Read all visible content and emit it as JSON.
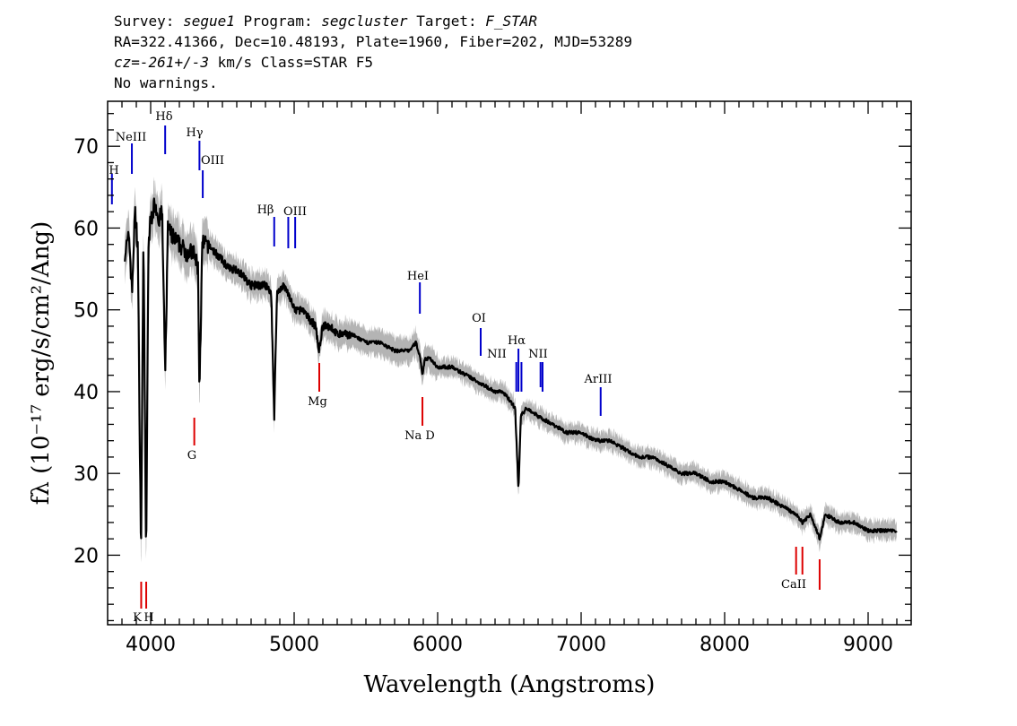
{
  "header": {
    "survey_label": "Survey:",
    "survey": "segue1",
    "program_label": "Program:",
    "program": "segcluster",
    "target_label": "Target:",
    "target": "F_STAR",
    "line2": "RA=322.41366, Dec=10.48193, Plate=1960, Fiber=202, MJD=53289",
    "line3_pre": "cz=",
    "line3_val": "-261+/-3",
    "line3_post": " km/s Class=STAR F5",
    "line4": "No warnings."
  },
  "chart_data": {
    "type": "line",
    "xlabel": "Wavelength (Angstroms)",
    "ylabel": "fλ (10⁻¹⁷ erg/s/cm²/Ang)",
    "xlim": [
      3700,
      9300
    ],
    "ylim": [
      11.5,
      75.5
    ],
    "x_ticks": [
      4000,
      5000,
      6000,
      7000,
      8000,
      9000
    ],
    "y_ticks": [
      20,
      30,
      40,
      50,
      60,
      70
    ],
    "grid": false,
    "colors": {
      "flux": "#000000",
      "error": "#b4b4b4",
      "emission": "#0000cc",
      "absorption": "#dd0000"
    },
    "series": [
      {
        "x": [
          3820,
          3850,
          3870,
          3890,
          3910,
          3933,
          3950,
          3968,
          3985,
          4000,
          4030,
          4060,
          4080,
          4101,
          4120,
          4150,
          4200,
          4250,
          4300,
          4330,
          4340,
          4360,
          4400,
          4450,
          4500,
          4550,
          4600,
          4650,
          4700,
          4750,
          4800,
          4840,
          4861,
          4880,
          4920,
          4960,
          5000,
          5050,
          5100,
          5150,
          5172,
          5200,
          5250,
          5300,
          5400,
          5500,
          5600,
          5700,
          5800,
          5850,
          5880,
          5893,
          5910,
          5950,
          6000,
          6100,
          6200,
          6300,
          6400,
          6450,
          6500,
          6540,
          6563,
          6580,
          6620,
          6700,
          6800,
          6900,
          7000,
          7100,
          7200,
          7300,
          7400,
          7500,
          7600,
          7700,
          7800,
          7900,
          8000,
          8100,
          8200,
          8300,
          8400,
          8498,
          8542,
          8600,
          8662,
          8700,
          8800,
          8900,
          9000,
          9100,
          9200
        ],
        "y": [
          57,
          59,
          52,
          62,
          58,
          20,
          60,
          19,
          58,
          61,
          63,
          61,
          62,
          42,
          60,
          59,
          58,
          57,
          57,
          55,
          40,
          58,
          58,
          57,
          56,
          55,
          55,
          54,
          53,
          53,
          53,
          52,
          37,
          52,
          53,
          52,
          50,
          50,
          49,
          48,
          45,
          48,
          48,
          47,
          47,
          46,
          46,
          45,
          45,
          46,
          44,
          42,
          44,
          44,
          43,
          43,
          42,
          41,
          40,
          40,
          39,
          38,
          28,
          37,
          38,
          37,
          36,
          35,
          35,
          34,
          34,
          33,
          32,
          32,
          31,
          30,
          30,
          29,
          29,
          28,
          27,
          27,
          26,
          25,
          24,
          25,
          22,
          25,
          24,
          24,
          23,
          23,
          23
        ]
      }
    ],
    "emission_lines": [
      {
        "label": "H",
        "x": 3730
      },
      {
        "label": "NeIII",
        "x": 3869
      },
      {
        "label": "Hδ",
        "x": 4101
      },
      {
        "label": "Hγ",
        "x": 4340
      },
      {
        "label": "OIII",
        "x": 4363
      },
      {
        "label": "Hβ",
        "x": 4861
      },
      {
        "label": "OIII",
        "x": 4959
      },
      {
        "label": "",
        "x": 5007
      },
      {
        "label": "HeI",
        "x": 5876
      },
      {
        "label": "OI",
        "x": 6300
      },
      {
        "label": "NII",
        "x": 6548
      },
      {
        "label": "Hα",
        "x": 6563
      },
      {
        "label": "",
        "x": 6584
      },
      {
        "label": "NII",
        "x": 6717
      },
      {
        "label": "",
        "x": 6731
      },
      {
        "label": "ArIII",
        "x": 7136
      }
    ],
    "absorption_lines": [
      {
        "label": "K",
        "x": 3934
      },
      {
        "label": "H",
        "x": 3969
      },
      {
        "label": "G",
        "x": 4304
      },
      {
        "label": "Mg",
        "x": 5175
      },
      {
        "label": "Na D",
        "x": 5894
      },
      {
        "label": "",
        "x": 8498
      },
      {
        "label": "CaII",
        "x": 8542
      },
      {
        "label": "",
        "x": 8662
      }
    ]
  }
}
